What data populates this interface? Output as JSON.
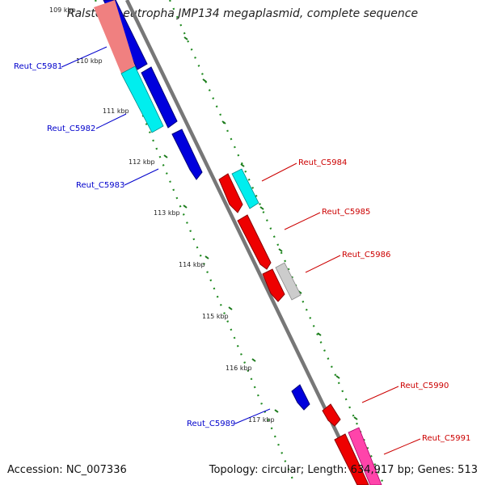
{
  "title": "Ralstonia eutropha JMP134 megaplasmid, complete sequence",
  "footer": {
    "accession": "Accession: NC_007336",
    "summary": "Topology: circular; Length: 634,917 bp; Genes: 513"
  },
  "ticks": [
    {
      "label": "109 kbp"
    },
    {
      "label": "110 kbp"
    },
    {
      "label": "111 kbp"
    },
    {
      "label": "112 kbp"
    },
    {
      "label": "113 kbp"
    },
    {
      "label": "114 kbp"
    },
    {
      "label": "115 kbp"
    },
    {
      "label": "116 kbp"
    },
    {
      "label": "117 kbp"
    }
  ],
  "gene_labels": {
    "g5981": "Reut_C5981",
    "g5982": "Reut_C5982",
    "g5983": "Reut_C5983",
    "g5984": "Reut_C5984",
    "g5985": "Reut_C5985",
    "g5986": "Reut_C5986",
    "g5989": "Reut_C5989",
    "g5990": "Reut_C5990",
    "g5991": "Reut_C5991"
  },
  "colors": {
    "backbone": "#808080",
    "forward_label": "#0000cc",
    "reverse_label": "#cc0000",
    "tick_dots": "#228b22"
  }
}
